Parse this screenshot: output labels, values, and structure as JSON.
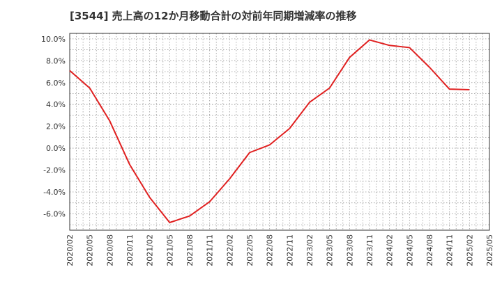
{
  "chart_data": {
    "type": "line",
    "title": "[3544]  売上高の12か月移動合計の対前年同期増減率の推移",
    "xlabel": "",
    "ylabel": "",
    "categories": [
      "2020/02",
      "2020/05",
      "2020/08",
      "2020/11",
      "2021/02",
      "2021/05",
      "2021/08",
      "2021/11",
      "2022/02",
      "2022/05",
      "2022/08",
      "2022/11",
      "2023/02",
      "2023/05",
      "2023/08",
      "2023/11",
      "2024/02",
      "2024/05",
      "2024/08",
      "2024/11",
      "2025/02",
      "2025/05"
    ],
    "yticks": [
      "10.0%",
      "8.0%",
      "6.0%",
      "4.0%",
      "2.0%",
      "0.0%",
      "-2.0%",
      "-4.0%",
      "-6.0%"
    ],
    "ytick_values": [
      10,
      8,
      6,
      4,
      2,
      0,
      -2,
      -4,
      -6
    ],
    "ylim": [
      -7.5,
      10.5
    ],
    "grid": true,
    "series": [
      {
        "name": "増減率",
        "color": "#e02020",
        "values": [
          7.1,
          5.5,
          2.5,
          -1.5,
          -4.5,
          -6.8,
          -6.2,
          -4.9,
          -2.8,
          -0.4,
          0.3,
          1.8,
          4.2,
          5.5,
          8.3,
          9.9,
          9.4,
          9.2,
          7.4,
          5.4,
          5.35,
          null
        ]
      }
    ]
  }
}
